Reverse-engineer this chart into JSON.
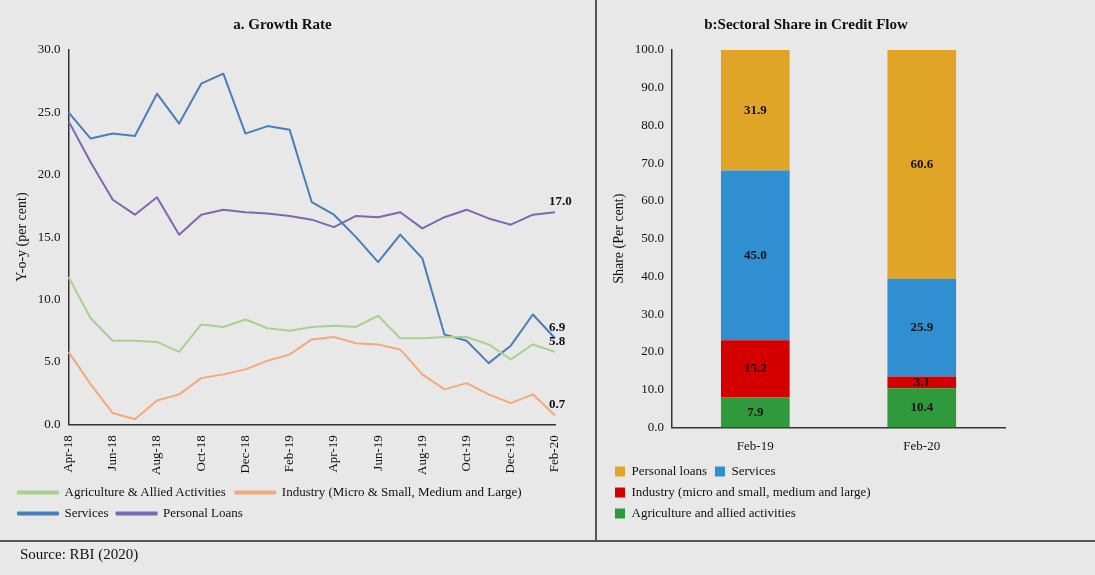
{
  "chart_data": [
    {
      "type": "line",
      "title": "a. Growth Rate",
      "ylabel": "Y-o-y (per cent)",
      "categories": [
        "Apr-18",
        null,
        "Jun-18",
        null,
        "Aug-18",
        null,
        "Oct-18",
        null,
        "Dec-18",
        null,
        "Feb-19",
        null,
        "Apr-19",
        null,
        "Jun-19",
        null,
        "Aug-19",
        null,
        "Oct-19",
        null,
        "Dec-19",
        null,
        "Feb-20"
      ],
      "series": [
        {
          "name": "Agriculture & Allied Activities",
          "color": "#a9d18e",
          "values": [
            11.8,
            8.5,
            6.7,
            6.7,
            6.6,
            5.8,
            8.0,
            7.8,
            8.4,
            7.7,
            7.5,
            7.8,
            7.9,
            7.8,
            8.7,
            6.9,
            6.9,
            7.0,
            7.0,
            6.4,
            5.2,
            6.4,
            5.8
          ],
          "value_labels": [
            null,
            null,
            null,
            null,
            null,
            null,
            null,
            null,
            null,
            null,
            null,
            null,
            null,
            null,
            null,
            null,
            null,
            null,
            null,
            null,
            null,
            null,
            "5.8"
          ]
        },
        {
          "name": "Industry (Micro & Small, Medium and Large)",
          "color": "#f4a97a",
          "values": [
            5.8,
            3.2,
            0.9,
            0.4,
            1.9,
            2.4,
            3.7,
            4.0,
            4.4,
            5.1,
            5.6,
            6.8,
            7.0,
            6.5,
            6.4,
            6.0,
            4.0,
            2.8,
            3.3,
            2.4,
            1.7,
            2.4,
            0.7
          ],
          "value_labels": [
            null,
            null,
            null,
            null,
            null,
            null,
            null,
            null,
            null,
            null,
            null,
            null,
            null,
            null,
            null,
            null,
            null,
            null,
            null,
            null,
            null,
            null,
            "0.7"
          ]
        },
        {
          "name": "Services",
          "color": "#4a7ebb",
          "values": [
            25.0,
            22.9,
            23.3,
            23.1,
            26.5,
            24.1,
            27.3,
            28.1,
            23.3,
            23.9,
            23.6,
            17.8,
            16.8,
            15.0,
            13.0,
            15.2,
            13.3,
            7.2,
            6.7,
            4.9,
            6.3,
            8.8,
            6.9
          ],
          "value_labels": [
            null,
            null,
            null,
            null,
            null,
            null,
            null,
            null,
            null,
            null,
            null,
            null,
            null,
            null,
            null,
            null,
            null,
            null,
            null,
            null,
            null,
            null,
            "6.9"
          ]
        },
        {
          "name": "Personal Loans",
          "color": "#7b68b0",
          "values": [
            24.3,
            21.0,
            18.0,
            16.8,
            18.2,
            15.2,
            16.8,
            17.2,
            17.0,
            16.9,
            16.7,
            16.4,
            15.8,
            16.7,
            16.6,
            17.0,
            15.7,
            16.6,
            17.2,
            16.5,
            16.0,
            16.8,
            17.0
          ],
          "value_labels": [
            null,
            null,
            null,
            null,
            null,
            null,
            null,
            null,
            null,
            null,
            null,
            null,
            null,
            null,
            null,
            null,
            null,
            null,
            null,
            null,
            null,
            null,
            "17.0"
          ]
        }
      ],
      "ylim": [
        0,
        30
      ],
      "yticks": [
        {
          "value": 0,
          "label": "0.0"
        },
        {
          "value": 5,
          "label": "5.0"
        },
        {
          "value": 10,
          "label": "10.0"
        },
        {
          "value": 15,
          "label": "15.0"
        },
        {
          "value": 20,
          "label": "20.0"
        },
        {
          "value": 25,
          "label": "25.0"
        },
        {
          "value": 30,
          "label": "30.0"
        }
      ],
      "grid": false,
      "legend": "bottom",
      "marker": "none",
      "line_style": "solid",
      "annotations": [
        "Source: RBI (2020)"
      ]
    },
    {
      "type": "bar",
      "title": "b:Sectoral Share in Credit Flow",
      "ylabel": "Share (Per cent)",
      "categories": [
        "Feb-19",
        "Feb-20"
      ],
      "stacked": true,
      "series": [
        {
          "name": "Agriculture and allied activities",
          "color": "#2e9a3c",
          "values": [
            7.9,
            10.4
          ],
          "value_labels": [
            "7.9",
            "10.4"
          ]
        },
        {
          "name": "Industry (micro and small, medium and large)",
          "color": "#d40000",
          "values": [
            15.2,
            3.1
          ],
          "value_labels": [
            "15.2",
            "3.1"
          ]
        },
        {
          "name": "Services",
          "color": "#2f8fd0",
          "values": [
            45.0,
            25.9
          ],
          "value_labels": [
            "45.0",
            "25.9"
          ]
        },
        {
          "name": "Personal loans",
          "color": "#e0a526",
          "values": [
            31.9,
            60.6
          ],
          "value_labels": [
            "31.9",
            "60.6"
          ]
        }
      ],
      "ylim": [
        0,
        100
      ],
      "yticks": [
        {
          "value": 0,
          "label": "0.0"
        },
        {
          "value": 10,
          "label": "10.0"
        },
        {
          "value": 20,
          "label": "20.0"
        },
        {
          "value": 30,
          "label": "30.0"
        },
        {
          "value": 40,
          "label": "40.0"
        },
        {
          "value": 50,
          "label": "50.0"
        },
        {
          "value": 60,
          "label": "60.0"
        },
        {
          "value": 70,
          "label": "70.0"
        },
        {
          "value": 80,
          "label": "80.0"
        },
        {
          "value": 90,
          "label": "90.0"
        },
        {
          "value": 100,
          "label": "100.0"
        }
      ],
      "grid": false,
      "legend": "bottom"
    }
  ]
}
